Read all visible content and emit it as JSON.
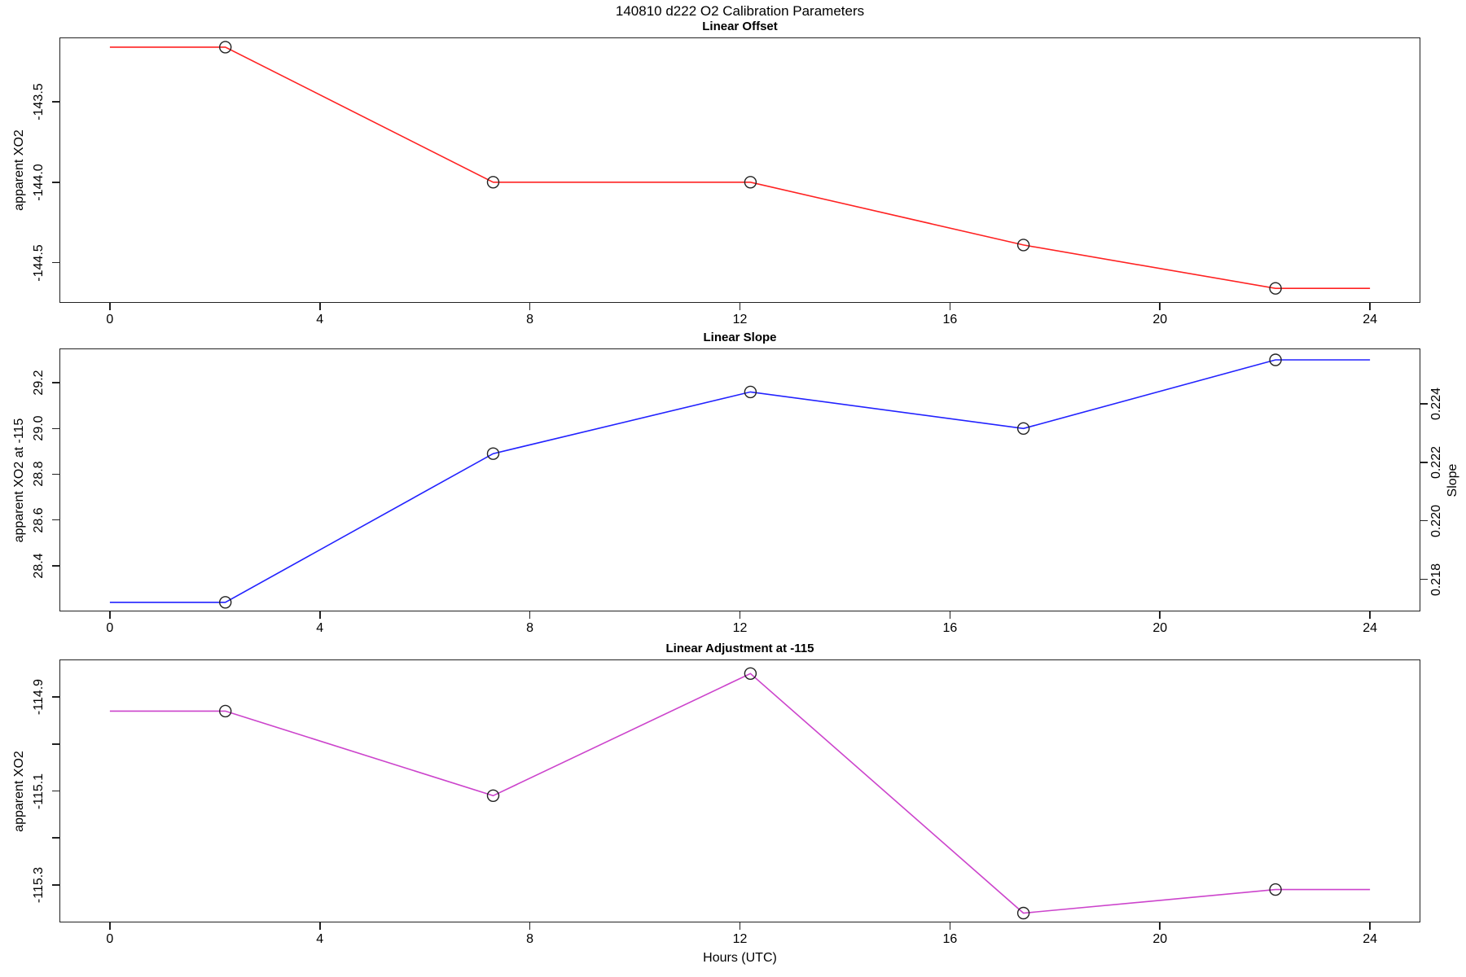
{
  "figure": {
    "title": "140810   d222   O2 Calibration Parameters",
    "xlabel": "Hours (UTC)"
  },
  "chart_data": [
    {
      "type": "line",
      "title": "Linear Offset",
      "ylabel": "apparent XO2",
      "color": "#ff2222",
      "marker": "open-circle",
      "x": [
        2.2,
        7.3,
        12.2,
        17.4,
        22.2
      ],
      "values": [
        -143.16,
        -144.0,
        -144.0,
        -144.39,
        -144.66
      ],
      "line_extends_flat_to": [
        0,
        24
      ],
      "xlim": [
        -0.96,
        24.96
      ],
      "ylim": [
        -144.75,
        -143.1
      ],
      "xticks": [
        {
          "v": 0,
          "label": "0"
        },
        {
          "v": 4,
          "label": "4"
        },
        {
          "v": 8,
          "label": "8"
        },
        {
          "v": 12,
          "label": "12"
        },
        {
          "v": 16,
          "label": "16"
        },
        {
          "v": 20,
          "label": "20"
        },
        {
          "v": 24,
          "label": "24"
        }
      ],
      "yticks": [
        {
          "v": -143.5,
          "label": "-143.5"
        },
        {
          "v": -144.0,
          "label": "-144.0"
        },
        {
          "v": -144.5,
          "label": "-144.5"
        }
      ],
      "grid": false
    },
    {
      "type": "line",
      "title": "Linear Slope",
      "ylabel": "apparent XO2 at -115",
      "ylabel_right": "Slope",
      "color": "#2222ff",
      "marker": "open-circle",
      "x": [
        2.2,
        7.3,
        12.2,
        17.4,
        22.2
      ],
      "values": [
        28.24,
        28.89,
        29.16,
        29.0,
        29.3
      ],
      "line_extends_flat_to": [
        0,
        24
      ],
      "xlim": [
        -0.96,
        24.96
      ],
      "ylim": [
        28.2,
        29.35
      ],
      "ylim_right": [
        0.2169,
        0.2259
      ],
      "xticks": [
        {
          "v": 0,
          "label": "0"
        },
        {
          "v": 4,
          "label": "4"
        },
        {
          "v": 8,
          "label": "8"
        },
        {
          "v": 12,
          "label": "12"
        },
        {
          "v": 16,
          "label": "16"
        },
        {
          "v": 20,
          "label": "20"
        },
        {
          "v": 24,
          "label": "24"
        }
      ],
      "yticks": [
        {
          "v": 28.4,
          "label": "28.4"
        },
        {
          "v": 28.6,
          "label": "28.6"
        },
        {
          "v": 28.8,
          "label": "28.8"
        },
        {
          "v": 29.0,
          "label": "29.0"
        },
        {
          "v": 29.2,
          "label": "29.2"
        }
      ],
      "yticks_right": [
        {
          "v": 0.218,
          "label": "0.218"
        },
        {
          "v": 0.22,
          "label": "0.220"
        },
        {
          "v": 0.222,
          "label": "0.222"
        },
        {
          "v": 0.224,
          "label": "0.224"
        }
      ],
      "grid": false
    },
    {
      "type": "line",
      "title": "Linear Adjustment at -115",
      "ylabel": "apparent XO2",
      "color": "#cc44cc",
      "marker": "open-circle",
      "x": [
        2.2,
        7.3,
        12.2,
        17.4,
        22.2
      ],
      "values": [
        -114.93,
        -115.11,
        -114.85,
        -115.36,
        -115.31
      ],
      "line_extends_flat_to": [
        0,
        24
      ],
      "xlim": [
        -0.96,
        24.96
      ],
      "ylim": [
        -115.38,
        -114.82
      ],
      "xticks": [
        {
          "v": 0,
          "label": "0"
        },
        {
          "v": 4,
          "label": "4"
        },
        {
          "v": 8,
          "label": "8"
        },
        {
          "v": 12,
          "label": "12"
        },
        {
          "v": 16,
          "label": "16"
        },
        {
          "v": 20,
          "label": "20"
        },
        {
          "v": 24,
          "label": "24"
        }
      ],
      "yticks": [
        {
          "v": -114.9,
          "label": "-114.9"
        },
        {
          "v": -115.0,
          "label": ""
        },
        {
          "v": -115.1,
          "label": "-115.1"
        },
        {
          "v": -115.2,
          "label": ""
        },
        {
          "v": -115.3,
          "label": "-115.3"
        }
      ],
      "grid": false
    }
  ]
}
